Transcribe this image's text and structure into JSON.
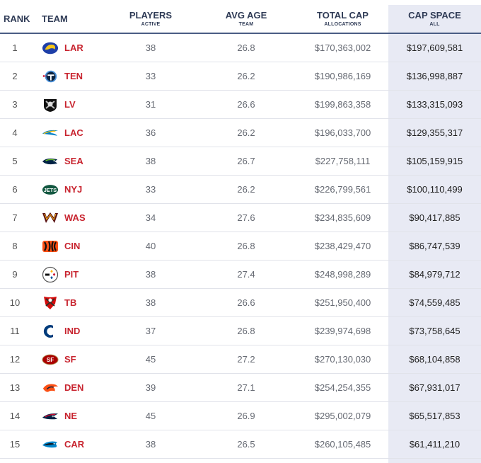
{
  "header": {
    "rank": "RANK",
    "team": "TEAM",
    "players": "PLAYERS",
    "players_sub": "ACTIVE",
    "age": "AVG AGE",
    "age_sub": "TEAM",
    "cap": "TOTAL CAP",
    "cap_sub": "ALLOCATIONS",
    "space": "CAP SPACE",
    "space_sub": "ALL"
  },
  "colors": {
    "accent_red": "#c8242f",
    "header_line": "#4a5d84",
    "cap_space_bg": "#e8eaf4"
  },
  "rows": [
    {
      "rank": "1",
      "abbr": "LAR",
      "players": "38",
      "age": "26.8",
      "cap": "$170,363,002",
      "space": "$197,609,581",
      "icon": "rams-logo-icon"
    },
    {
      "rank": "2",
      "abbr": "TEN",
      "players": "33",
      "age": "26.2",
      "cap": "$190,986,169",
      "space": "$136,998,887",
      "icon": "titans-logo-icon"
    },
    {
      "rank": "3",
      "abbr": "LV",
      "players": "31",
      "age": "26.6",
      "cap": "$199,863,358",
      "space": "$133,315,093",
      "icon": "raiders-logo-icon"
    },
    {
      "rank": "4",
      "abbr": "LAC",
      "players": "36",
      "age": "26.2",
      "cap": "$196,033,700",
      "space": "$129,355,317",
      "icon": "chargers-logo-icon"
    },
    {
      "rank": "5",
      "abbr": "SEA",
      "players": "38",
      "age": "26.7",
      "cap": "$227,758,111",
      "space": "$105,159,915",
      "icon": "seahawks-logo-icon"
    },
    {
      "rank": "6",
      "abbr": "NYJ",
      "players": "33",
      "age": "26.2",
      "cap": "$226,799,561",
      "space": "$100,110,499",
      "icon": "jets-logo-icon"
    },
    {
      "rank": "7",
      "abbr": "WAS",
      "players": "34",
      "age": "27.6",
      "cap": "$234,835,609",
      "space": "$90,417,885",
      "icon": "commanders-logo-icon"
    },
    {
      "rank": "8",
      "abbr": "CIN",
      "players": "40",
      "age": "26.8",
      "cap": "$238,429,470",
      "space": "$86,747,539",
      "icon": "bengals-logo-icon"
    },
    {
      "rank": "9",
      "abbr": "PIT",
      "players": "38",
      "age": "27.4",
      "cap": "$248,998,289",
      "space": "$84,979,712",
      "icon": "steelers-logo-icon"
    },
    {
      "rank": "10",
      "abbr": "TB",
      "players": "38",
      "age": "26.6",
      "cap": "$251,950,400",
      "space": "$74,559,485",
      "icon": "buccaneers-logo-icon"
    },
    {
      "rank": "11",
      "abbr": "IND",
      "players": "37",
      "age": "26.8",
      "cap": "$239,974,698",
      "space": "$73,758,645",
      "icon": "colts-logo-icon"
    },
    {
      "rank": "12",
      "abbr": "SF",
      "players": "45",
      "age": "27.2",
      "cap": "$270,130,030",
      "space": "$68,104,858",
      "icon": "49ers-logo-icon"
    },
    {
      "rank": "13",
      "abbr": "DEN",
      "players": "39",
      "age": "27.1",
      "cap": "$254,254,355",
      "space": "$67,931,017",
      "icon": "broncos-logo-icon"
    },
    {
      "rank": "14",
      "abbr": "NE",
      "players": "45",
      "age": "26.9",
      "cap": "$295,002,079",
      "space": "$65,517,853",
      "icon": "patriots-logo-icon"
    },
    {
      "rank": "15",
      "abbr": "CAR",
      "players": "38",
      "age": "26.5",
      "cap": "$260,105,485",
      "space": "$61,411,210",
      "icon": "panthers-logo-icon"
    }
  ]
}
